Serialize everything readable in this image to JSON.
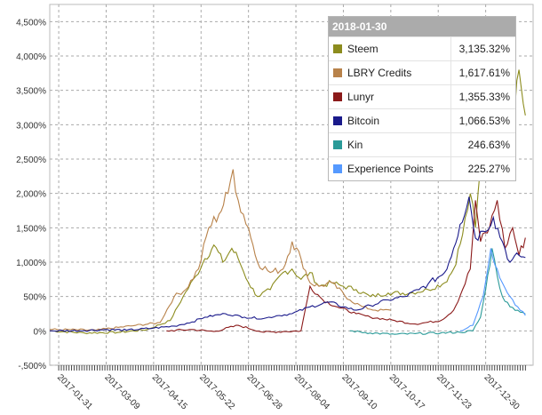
{
  "chart_data": {
    "type": "line",
    "x_tick_labels": [
      "2017-01-31",
      "2017-03-09",
      "2017-04-15",
      "2017-05-22",
      "2017-06-28",
      "2017-08-04",
      "2017-09-10",
      "2017-10-17",
      "2017-11-23",
      "2017-12-30"
    ],
    "y_tick_labels": [
      "-,500%",
      "0%",
      "500%",
      "1,000%",
      "1,500%",
      "2,000%",
      "2,500%",
      "3,000%",
      "3,500%",
      "4,000%",
      "4,500%"
    ],
    "y_ticks": [
      -500,
      0,
      500,
      1000,
      1500,
      2000,
      2500,
      3000,
      3500,
      4000,
      4500
    ],
    "ylim": [
      -500,
      4750
    ],
    "xlim": [
      "2017-01-24",
      "2018-02-05"
    ],
    "grid": true,
    "series": [
      {
        "name": "Steem",
        "color": "#8c8c1e",
        "start": "2017-01-24",
        "points": [
          [
            "2017-01-24",
            0
          ],
          [
            "2017-02-20",
            -30
          ],
          [
            "2017-03-20",
            -20
          ],
          [
            "2017-04-10",
            20
          ],
          [
            "2017-04-28",
            150
          ],
          [
            "2017-05-08",
            500
          ],
          [
            "2017-05-18",
            800
          ],
          [
            "2017-05-25",
            1050
          ],
          [
            "2017-06-01",
            1250
          ],
          [
            "2017-06-08",
            1000
          ],
          [
            "2017-06-15",
            1200
          ],
          [
            "2017-06-20",
            1050
          ],
          [
            "2017-06-28",
            700
          ],
          [
            "2017-07-05",
            500
          ],
          [
            "2017-07-15",
            600
          ],
          [
            "2017-07-25",
            850
          ],
          [
            "2017-08-01",
            900
          ],
          [
            "2017-08-08",
            750
          ],
          [
            "2017-08-15",
            850
          ],
          [
            "2017-08-22",
            650
          ],
          [
            "2017-09-01",
            700
          ],
          [
            "2017-09-10",
            650
          ],
          [
            "2017-09-20",
            600
          ],
          [
            "2017-10-01",
            500
          ],
          [
            "2017-10-15",
            550
          ],
          [
            "2017-11-01",
            550
          ],
          [
            "2017-11-15",
            600
          ],
          [
            "2017-11-28",
            700
          ],
          [
            "2017-12-05",
            900
          ],
          [
            "2017-12-12",
            1400
          ],
          [
            "2017-12-18",
            2000
          ],
          [
            "2017-12-22",
            1500
          ],
          [
            "2017-12-26",
            2400
          ],
          [
            "2017-12-30",
            2800
          ],
          [
            "2018-01-05",
            3900
          ],
          [
            "2018-01-10",
            3300
          ],
          [
            "2018-01-15",
            3600
          ],
          [
            "2018-01-20",
            3200
          ],
          [
            "2018-01-25",
            3800
          ],
          [
            "2018-01-30",
            3135.32
          ]
        ]
      },
      {
        "name": "LBRY Credits",
        "color": "#b8824a",
        "start": "2017-01-24",
        "points": [
          [
            "2017-01-24",
            20
          ],
          [
            "2017-03-01",
            10
          ],
          [
            "2017-04-01",
            80
          ],
          [
            "2017-04-20",
            120
          ],
          [
            "2017-05-01",
            500
          ],
          [
            "2017-05-10",
            600
          ],
          [
            "2017-05-20",
            900
          ],
          [
            "2017-05-28",
            1500
          ],
          [
            "2017-06-05",
            1700
          ],
          [
            "2017-06-12",
            2000
          ],
          [
            "2017-06-16",
            2350
          ],
          [
            "2017-06-20",
            1900
          ],
          [
            "2017-06-28",
            1500
          ],
          [
            "2017-07-05",
            1000
          ],
          [
            "2017-07-15",
            850
          ],
          [
            "2017-07-25",
            900
          ],
          [
            "2017-08-01",
            1300
          ],
          [
            "2017-08-08",
            1050
          ],
          [
            "2017-08-15",
            700
          ],
          [
            "2017-08-22",
            650
          ],
          [
            "2017-09-01",
            700
          ],
          [
            "2017-09-15",
            450
          ],
          [
            "2017-09-25",
            350
          ],
          [
            "2017-10-05",
            300
          ],
          [
            "2017-10-17",
            300
          ]
        ]
      },
      {
        "name": "Lunyr",
        "color": "#8b1a1a",
        "start": "2017-04-25",
        "points": [
          [
            "2017-04-25",
            0
          ],
          [
            "2017-05-15",
            20
          ],
          [
            "2017-06-01",
            -10
          ],
          [
            "2017-06-20",
            80
          ],
          [
            "2017-07-10",
            -20
          ],
          [
            "2017-07-25",
            -10
          ],
          [
            "2017-08-08",
            0
          ],
          [
            "2017-08-15",
            650
          ],
          [
            "2017-08-25",
            450
          ],
          [
            "2017-09-05",
            350
          ],
          [
            "2017-09-20",
            250
          ],
          [
            "2017-10-01",
            200
          ],
          [
            "2017-10-20",
            150
          ],
          [
            "2017-11-05",
            100
          ],
          [
            "2017-11-25",
            150
          ],
          [
            "2017-12-05",
            300
          ],
          [
            "2017-12-12",
            600
          ],
          [
            "2017-12-18",
            900
          ],
          [
            "2017-12-22",
            1900
          ],
          [
            "2017-12-26",
            1300
          ],
          [
            "2018-01-02",
            1500
          ],
          [
            "2018-01-08",
            1900
          ],
          [
            "2018-01-14",
            1200
          ],
          [
            "2018-01-20",
            1500
          ],
          [
            "2018-01-25",
            1100
          ],
          [
            "2018-01-30",
            1355.33
          ]
        ]
      },
      {
        "name": "Bitcoin",
        "color": "#1a1a8b",
        "start": "2017-01-24",
        "points": [
          [
            "2017-01-24",
            0
          ],
          [
            "2017-02-20",
            5
          ],
          [
            "2017-03-10",
            20
          ],
          [
            "2017-03-25",
            10
          ],
          [
            "2017-04-15",
            40
          ],
          [
            "2017-05-01",
            70
          ],
          [
            "2017-05-15",
            130
          ],
          [
            "2017-05-25",
            200
          ],
          [
            "2017-06-10",
            250
          ],
          [
            "2017-06-25",
            200
          ],
          [
            "2017-07-10",
            180
          ],
          [
            "2017-07-20",
            220
          ],
          [
            "2017-08-01",
            250
          ],
          [
            "2017-08-15",
            350
          ],
          [
            "2017-08-30",
            420
          ],
          [
            "2017-09-10",
            350
          ],
          [
            "2017-09-20",
            300
          ],
          [
            "2017-10-01",
            370
          ],
          [
            "2017-10-15",
            450
          ],
          [
            "2017-10-28",
            500
          ],
          [
            "2017-11-08",
            600
          ],
          [
            "2017-11-15",
            680
          ],
          [
            "2017-11-28",
            850
          ],
          [
            "2017-12-05",
            1200
          ],
          [
            "2017-12-10",
            1550
          ],
          [
            "2017-12-17",
            1950
          ],
          [
            "2017-12-22",
            1350
          ],
          [
            "2017-12-28",
            1450
          ],
          [
            "2018-01-05",
            1650
          ],
          [
            "2018-01-12",
            1300
          ],
          [
            "2018-01-18",
            1000
          ],
          [
            "2018-01-25",
            1100
          ],
          [
            "2018-01-30",
            1066.53
          ]
        ]
      },
      {
        "name": "Kin",
        "color": "#2a9a98",
        "start": "2017-09-15",
        "points": [
          [
            "2017-09-15",
            0
          ],
          [
            "2017-10-01",
            -30
          ],
          [
            "2017-10-20",
            -50
          ],
          [
            "2017-11-05",
            -40
          ],
          [
            "2017-11-25",
            -30
          ],
          [
            "2017-12-10",
            -20
          ],
          [
            "2017-12-20",
            0
          ],
          [
            "2017-12-26",
            200
          ],
          [
            "2017-12-30",
            600
          ],
          [
            "2018-01-04",
            1200
          ],
          [
            "2018-01-08",
            800
          ],
          [
            "2018-01-12",
            500
          ],
          [
            "2018-01-18",
            350
          ],
          [
            "2018-01-24",
            300
          ],
          [
            "2018-01-30",
            246.63
          ]
        ]
      },
      {
        "name": "Experience Points",
        "color": "#5599ff",
        "start": "2017-12-10",
        "points": [
          [
            "2017-12-10",
            0
          ],
          [
            "2017-12-20",
            80
          ],
          [
            "2017-12-28",
            500
          ],
          [
            "2018-01-03",
            1200
          ],
          [
            "2018-01-08",
            900
          ],
          [
            "2018-01-12",
            700
          ],
          [
            "2018-01-18",
            500
          ],
          [
            "2018-01-24",
            350
          ],
          [
            "2018-01-30",
            225.27
          ]
        ]
      }
    ]
  },
  "tooltip": {
    "date": "2018-01-30",
    "rows": [
      {
        "name": "Steem",
        "value": "3,135.32%",
        "color": "#8c8c1e"
      },
      {
        "name": "LBRY Credits",
        "value": "1,617.61%",
        "color": "#b8824a"
      },
      {
        "name": "Lunyr",
        "value": "1,355.33%",
        "color": "#8b1a1a"
      },
      {
        "name": "Bitcoin",
        "value": "1,066.53%",
        "color": "#1a1a8b"
      },
      {
        "name": "Kin",
        "value": "246.63%",
        "color": "#2a9a98"
      },
      {
        "name": "Experience Points",
        "value": "225.27%",
        "color": "#5599ff"
      }
    ]
  }
}
